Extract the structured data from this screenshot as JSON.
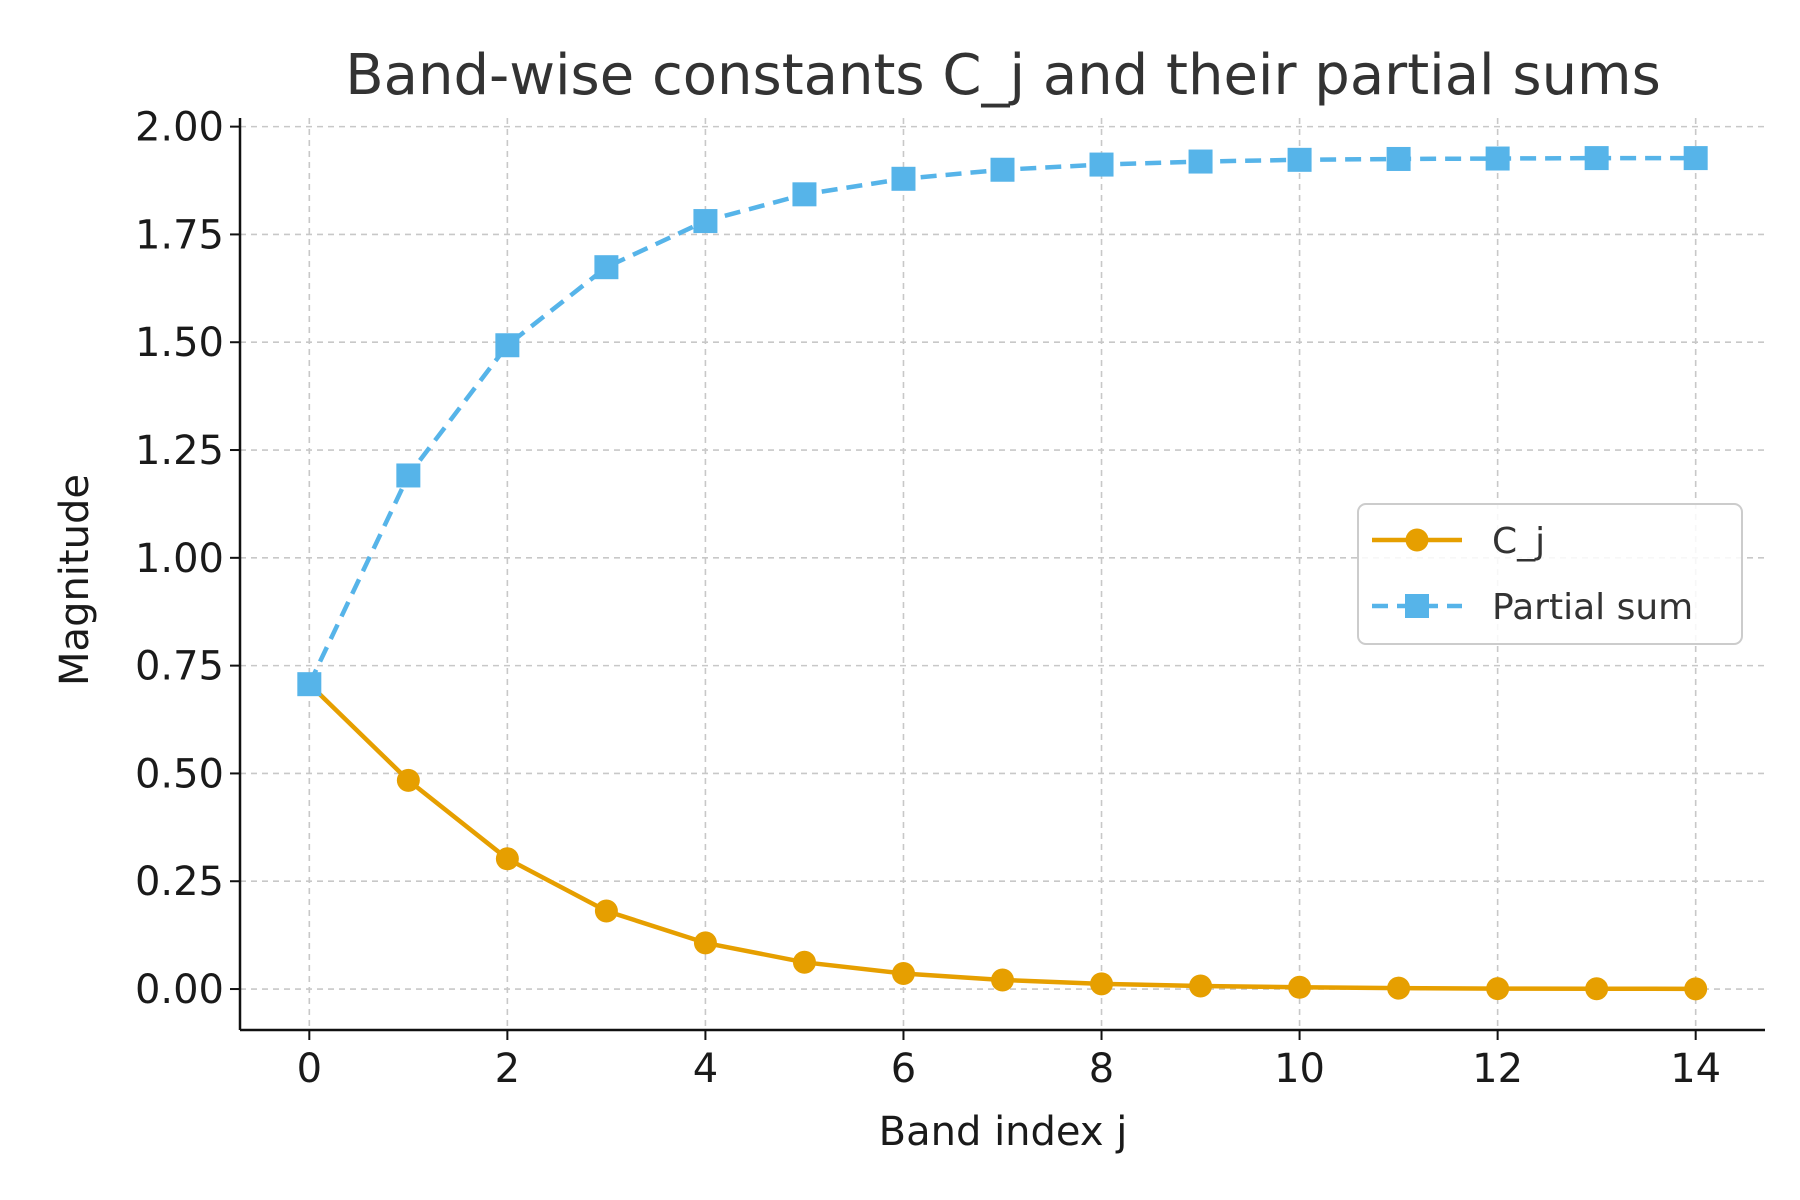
{
  "chart_data": {
    "type": "line",
    "title": "Band-wise constants C_j and their partial sums",
    "xlabel": "Band index j",
    "ylabel": "Magnitude",
    "xlim": [
      -0.7,
      14.7
    ],
    "ylim": [
      -0.095,
      2.02
    ],
    "xticks": [
      0,
      2,
      4,
      6,
      8,
      10,
      12,
      14
    ],
    "xtick_labels": [
      "0",
      "2",
      "4",
      "6",
      "8",
      "10",
      "12",
      "14"
    ],
    "yticks": [
      0,
      0.25,
      0.5,
      0.75,
      1.0,
      1.25,
      1.5,
      1.75,
      2.0
    ],
    "ytick_labels": [
      "0.00",
      "0.25",
      "0.50",
      "0.75",
      "1.00",
      "1.25",
      "1.50",
      "1.75",
      "2.00"
    ],
    "grid": true,
    "legend_position": "center-right",
    "x": [
      0,
      1,
      2,
      3,
      4,
      5,
      6,
      7,
      8,
      9,
      10,
      11,
      12,
      13,
      14
    ],
    "series": [
      {
        "name": "C_j",
        "color": "#E69F00",
        "line_style": "solid",
        "marker": "circle",
        "values": [
          0.707,
          0.484,
          0.302,
          0.181,
          0.107,
          0.062,
          0.036,
          0.021,
          0.012,
          0.007,
          0.004,
          0.002,
          0.001,
          0.0007,
          0.0004
        ]
      },
      {
        "name": "Partial sum",
        "color": "#56B4E9",
        "line_style": "dashed",
        "marker": "square",
        "values": [
          0.707,
          1.191,
          1.493,
          1.674,
          1.781,
          1.843,
          1.879,
          1.9,
          1.912,
          1.919,
          1.923,
          1.925,
          1.926,
          1.927,
          1.927
        ]
      }
    ]
  }
}
